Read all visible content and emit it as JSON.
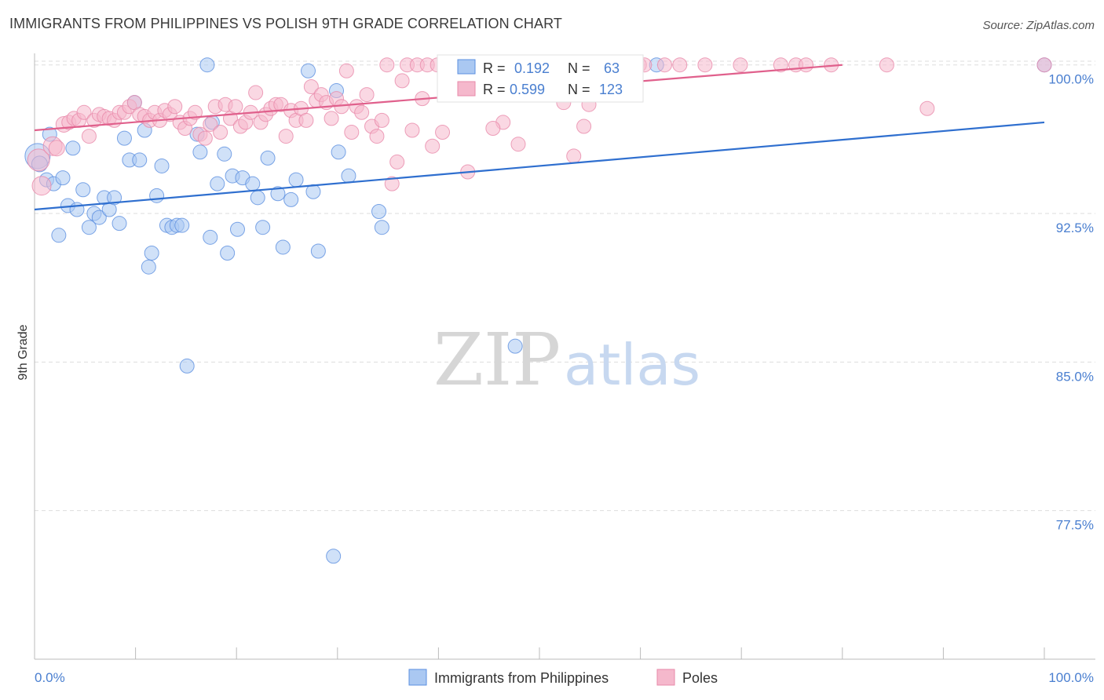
{
  "title": "IMMIGRANTS FROM PHILIPPINES VS POLISH 9TH GRADE CORRELATION CHART",
  "source": "Source: ZipAtlas.com",
  "watermark": {
    "zip": "ZIP",
    "atlas": "atlas"
  },
  "colors": {
    "blue": "#5b8fe0",
    "blue_fill": "#aac8f2",
    "blue_line": "#2f6fcf",
    "pink": "#e88aaa",
    "pink_fill": "#f5b8cc",
    "pink_line": "#e0608c",
    "tick_text": "#4a7fd0",
    "grid": "#dddddd"
  },
  "stats": {
    "r_label": "R =",
    "n_label": "N =",
    "blue": {
      "r": "0.192",
      "n": "63"
    },
    "pink": {
      "r": "0.599",
      "n": "123"
    }
  },
  "chart_data": {
    "type": "scatter",
    "title": "IMMIGRANTS FROM PHILIPPINES VS POLISH 9TH GRADE CORRELATION CHART",
    "xlabel": "",
    "ylabel": "9th Grade",
    "xlim": [
      0,
      100
    ],
    "ylim": [
      70.0,
      100.9
    ],
    "x_tick_labels": [
      "0.0%",
      "100.0%"
    ],
    "y_ticks": [
      77.5,
      85.0,
      92.5,
      100.0
    ],
    "y_tick_labels": [
      "77.5%",
      "85.0%",
      "92.5%",
      "100.0%"
    ],
    "grid": true,
    "legend_placement": "bottom-center",
    "series": [
      {
        "name": "Immigrants from Philippines",
        "color": "#5b8fe0",
        "trend": {
          "x": [
            0,
            100
          ],
          "y": [
            92.7,
            97.1
          ]
        },
        "points": [
          [
            0.3,
            95.4,
            16
          ],
          [
            0.5,
            95.0,
            10
          ],
          [
            1.2,
            94.2,
            9
          ],
          [
            1.9,
            94.0,
            9
          ],
          [
            2.8,
            94.3,
            9
          ],
          [
            3.3,
            92.9,
            9
          ],
          [
            4.2,
            92.7,
            9
          ],
          [
            4.8,
            93.7,
            9
          ],
          [
            5.4,
            91.8,
            9
          ],
          [
            5.9,
            92.5,
            9
          ],
          [
            6.4,
            92.3,
            9
          ],
          [
            6.9,
            93.3,
            9
          ],
          [
            7.4,
            92.7,
            9
          ],
          [
            7.9,
            93.3,
            9
          ],
          [
            8.4,
            92.0,
            9
          ],
          [
            2.4,
            91.4,
            9
          ],
          [
            8.9,
            96.3,
            9
          ],
          [
            9.4,
            95.2,
            9
          ],
          [
            10.4,
            95.2,
            9
          ],
          [
            10.9,
            96.7,
            9
          ],
          [
            9.9,
            98.1,
            9
          ],
          [
            12.1,
            93.4,
            9
          ],
          [
            12.6,
            94.9,
            9
          ],
          [
            13.1,
            91.9,
            9
          ],
          [
            13.6,
            91.8,
            9
          ],
          [
            14.1,
            91.9,
            9
          ],
          [
            14.6,
            91.9,
            9
          ],
          [
            11.6,
            90.5,
            9
          ],
          [
            11.3,
            89.8,
            9
          ],
          [
            15.1,
            84.8,
            9
          ],
          [
            16.1,
            96.5,
            9
          ],
          [
            16.4,
            95.6,
            9
          ],
          [
            17.1,
            100.0,
            9
          ],
          [
            17.4,
            91.3,
            9
          ],
          [
            17.6,
            97.1,
            9
          ],
          [
            18.1,
            94.0,
            9
          ],
          [
            18.8,
            95.5,
            9
          ],
          [
            19.1,
            90.5,
            9
          ],
          [
            19.6,
            94.4,
            9
          ],
          [
            20.1,
            91.7,
            9
          ],
          [
            20.6,
            94.3,
            9
          ],
          [
            21.6,
            94.0,
            9
          ],
          [
            22.1,
            93.3,
            9
          ],
          [
            22.6,
            91.8,
            9
          ],
          [
            23.1,
            95.3,
            9
          ],
          [
            24.1,
            93.5,
            9
          ],
          [
            24.6,
            90.8,
            9
          ],
          [
            25.4,
            93.2,
            9
          ],
          [
            25.9,
            94.2,
            9
          ],
          [
            27.1,
            99.7,
            9
          ],
          [
            27.6,
            93.6,
            9
          ],
          [
            28.1,
            90.6,
            9
          ],
          [
            29.6,
            75.2,
            9
          ],
          [
            29.9,
            98.7,
            9
          ],
          [
            30.1,
            95.6,
            9
          ],
          [
            31.1,
            94.4,
            9
          ],
          [
            34.1,
            92.6,
            9
          ],
          [
            34.4,
            91.8,
            9
          ],
          [
            47.6,
            85.8,
            9
          ],
          [
            61.6,
            100.0,
            9
          ],
          [
            100.0,
            100.0,
            9
          ],
          [
            1.5,
            96.5,
            9
          ],
          [
            3.8,
            95.8,
            9
          ]
        ]
      },
      {
        "name": "Poles",
        "color": "#e88aaa",
        "trend": {
          "x": [
            0,
            80
          ],
          "y": [
            96.7,
            100.0
          ]
        },
        "points": [
          [
            0.4,
            95.2,
            14
          ],
          [
            0.7,
            93.9,
            12
          ],
          [
            1.8,
            95.9,
            12
          ],
          [
            2.2,
            95.8,
            10
          ],
          [
            2.9,
            97.0,
            10
          ],
          [
            3.4,
            97.1,
            9
          ],
          [
            3.9,
            97.3,
            9
          ],
          [
            4.4,
            97.2,
            9
          ],
          [
            4.9,
            97.6,
            9
          ],
          [
            5.4,
            96.4,
            9
          ],
          [
            5.9,
            97.2,
            9
          ],
          [
            6.4,
            97.5,
            9
          ],
          [
            6.9,
            97.4,
            9
          ],
          [
            7.4,
            97.3,
            9
          ],
          [
            7.9,
            97.2,
            9
          ],
          [
            8.4,
            97.6,
            9
          ],
          [
            8.9,
            97.6,
            9
          ],
          [
            9.4,
            97.9,
            9
          ],
          [
            9.9,
            98.1,
            9
          ],
          [
            10.4,
            97.5,
            9
          ],
          [
            10.9,
            97.4,
            9
          ],
          [
            11.4,
            97.2,
            9
          ],
          [
            11.9,
            97.6,
            9
          ],
          [
            12.4,
            97.2,
            9
          ],
          [
            12.9,
            97.7,
            9
          ],
          [
            13.4,
            97.5,
            9
          ],
          [
            13.9,
            97.9,
            9
          ],
          [
            14.4,
            97.1,
            9
          ],
          [
            14.9,
            96.8,
            9
          ],
          [
            15.4,
            97.3,
            9
          ],
          [
            15.9,
            97.6,
            9
          ],
          [
            16.4,
            96.5,
            9
          ],
          [
            16.9,
            96.3,
            9
          ],
          [
            17.4,
            97.0,
            9
          ],
          [
            17.9,
            97.9,
            9
          ],
          [
            18.4,
            96.6,
            9
          ],
          [
            18.9,
            98.0,
            9
          ],
          [
            19.4,
            97.3,
            9
          ],
          [
            19.9,
            97.9,
            9
          ],
          [
            20.4,
            96.9,
            9
          ],
          [
            20.9,
            97.1,
            9
          ],
          [
            21.4,
            97.6,
            9
          ],
          [
            21.9,
            98.6,
            9
          ],
          [
            22.4,
            97.1,
            9
          ],
          [
            22.9,
            97.5,
            9
          ],
          [
            23.4,
            97.8,
            9
          ],
          [
            23.9,
            98.0,
            9
          ],
          [
            24.4,
            98.0,
            9
          ],
          [
            24.9,
            96.4,
            9
          ],
          [
            25.4,
            97.7,
            9
          ],
          [
            25.9,
            97.2,
            9
          ],
          [
            26.4,
            97.8,
            9
          ],
          [
            26.9,
            97.2,
            9
          ],
          [
            27.4,
            98.9,
            9
          ],
          [
            27.9,
            98.2,
            9
          ],
          [
            28.4,
            98.5,
            9
          ],
          [
            28.9,
            98.1,
            9
          ],
          [
            29.4,
            97.3,
            9
          ],
          [
            29.9,
            98.3,
            9
          ],
          [
            30.4,
            97.9,
            9
          ],
          [
            30.9,
            99.7,
            9
          ],
          [
            31.4,
            96.6,
            9
          ],
          [
            31.9,
            97.9,
            9
          ],
          [
            32.4,
            97.6,
            9
          ],
          [
            32.9,
            98.5,
            9
          ],
          [
            33.4,
            96.9,
            9
          ],
          [
            33.9,
            96.4,
            9
          ],
          [
            34.4,
            97.2,
            9
          ],
          [
            34.9,
            100.0,
            9
          ],
          [
            35.4,
            94.0,
            9
          ],
          [
            35.9,
            95.1,
            9
          ],
          [
            36.4,
            99.2,
            9
          ],
          [
            36.9,
            100.0,
            9
          ],
          [
            37.4,
            96.7,
            9
          ],
          [
            37.9,
            100.0,
            9
          ],
          [
            38.4,
            98.3,
            9
          ],
          [
            38.9,
            100.0,
            9
          ],
          [
            39.4,
            95.9,
            9
          ],
          [
            39.9,
            100.0,
            9
          ],
          [
            40.4,
            96.6,
            9
          ],
          [
            40.9,
            99.8,
            9
          ],
          [
            41.4,
            100.0,
            9
          ],
          [
            41.9,
            99.8,
            9
          ],
          [
            42.4,
            99.7,
            9
          ],
          [
            42.9,
            94.6,
            9
          ],
          [
            43.4,
            100.0,
            9
          ],
          [
            43.9,
            99.8,
            9
          ],
          [
            44.4,
            100.0,
            9
          ],
          [
            44.9,
            100.0,
            9
          ],
          [
            45.4,
            100.0,
            9
          ],
          [
            45.9,
            100.0,
            9
          ],
          [
            46.4,
            100.0,
            9
          ],
          [
            46.9,
            100.0,
            9
          ],
          [
            47.4,
            100.0,
            9
          ],
          [
            47.9,
            96.0,
            9
          ],
          [
            48.9,
            100.0,
            9
          ],
          [
            49.4,
            100.0,
            9
          ],
          [
            50.4,
            100.0,
            9
          ],
          [
            51.9,
            100.0,
            9
          ],
          [
            52.4,
            98.1,
            9
          ],
          [
            53.4,
            100.0,
            9
          ],
          [
            53.9,
            100.0,
            9
          ],
          [
            54.9,
            98.0,
            9
          ],
          [
            55.9,
            100.0,
            9
          ],
          [
            57.4,
            100.0,
            9
          ],
          [
            58.9,
            100.0,
            9
          ],
          [
            59.9,
            100.0,
            9
          ],
          [
            60.4,
            100.0,
            9
          ],
          [
            62.4,
            100.0,
            9
          ],
          [
            63.9,
            100.0,
            9
          ],
          [
            66.4,
            100.0,
            9
          ],
          [
            69.9,
            100.0,
            9
          ],
          [
            73.9,
            100.0,
            9
          ],
          [
            75.4,
            100.0,
            9
          ],
          [
            76.4,
            100.0,
            9
          ],
          [
            78.9,
            100.0,
            9
          ],
          [
            84.4,
            100.0,
            9
          ],
          [
            88.4,
            97.8,
            9
          ],
          [
            100.0,
            100.0,
            9
          ],
          [
            46.4,
            97.1,
            9
          ],
          [
            45.4,
            96.8,
            9
          ],
          [
            53.4,
            95.4,
            9
          ],
          [
            54.4,
            96.9,
            9
          ]
        ]
      }
    ]
  }
}
